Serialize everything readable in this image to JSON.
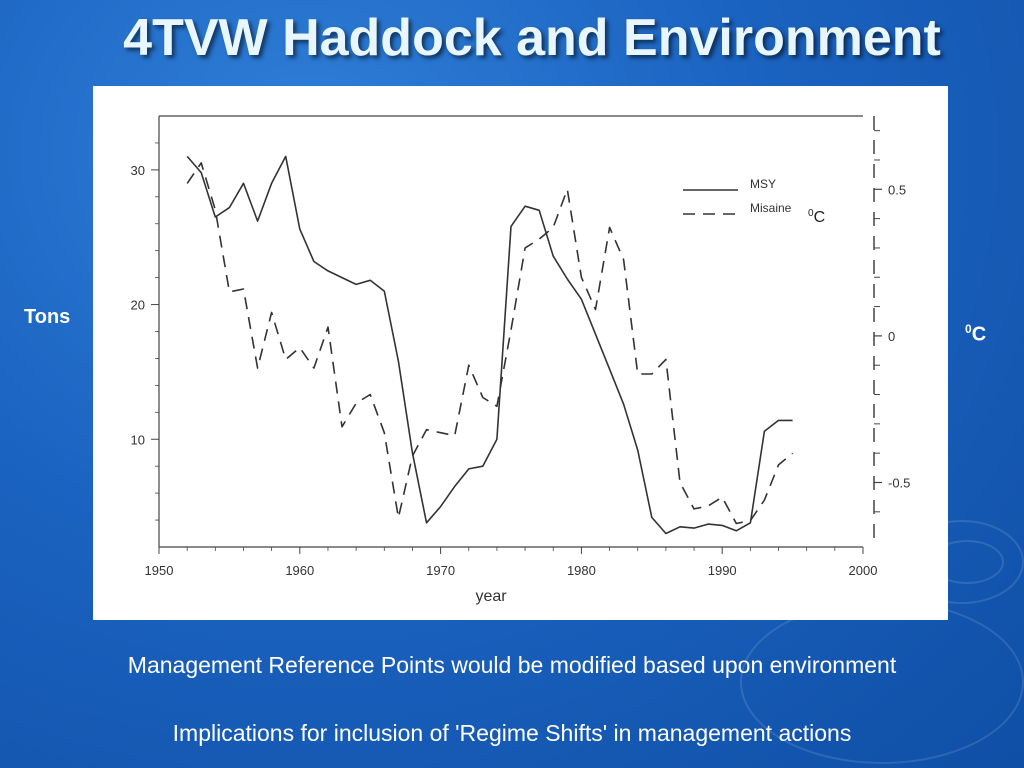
{
  "slide": {
    "title": "4TVW Haddock and Environment",
    "left_axis_title": "Tons",
    "right_axis_title_sup": "0",
    "right_axis_title_text": "C",
    "bullets": [
      "Management Reference Points would be modified based upon environment",
      "Implications for inclusion of 'Regime Shifts' in management actions"
    ]
  },
  "chart_data": {
    "type": "line",
    "xlabel": "year",
    "xlim": [
      1950,
      2000
    ],
    "x_ticks": [
      "1950",
      "1960",
      "1970",
      "1980",
      "1990",
      "2000"
    ],
    "ylim_left": [
      2,
      34
    ],
    "y_ticks_left": [
      "10",
      "20",
      "30"
    ],
    "ylim_right": [
      -0.72,
      0.75
    ],
    "y_ticks_right": [
      "0.5",
      "0",
      "-0.5"
    ],
    "legend_position": "top-right",
    "legend_annotation_sup": "0",
    "legend_annotation_text": "C",
    "series": [
      {
        "name": "MSY",
        "axis": "left",
        "style": "solid",
        "color": "#333333",
        "x": [
          1952,
          1953,
          1954,
          1955,
          1956,
          1957,
          1958,
          1959,
          1960,
          1961,
          1962,
          1963,
          1964,
          1965,
          1966,
          1967,
          1968,
          1969,
          1970,
          1971,
          1972,
          1973,
          1974,
          1975,
          1976,
          1977,
          1978,
          1979,
          1980,
          1981,
          1982,
          1983,
          1984,
          1985,
          1986,
          1987,
          1988,
          1989,
          1990,
          1991,
          1992,
          1993,
          1994,
          1995
        ],
        "y": [
          31,
          29.8,
          26.5,
          27.2,
          29,
          26.2,
          29,
          31,
          25.6,
          23.2,
          22.5,
          22,
          21.5,
          21.8,
          21,
          15.8,
          9,
          3.8,
          5,
          6.5,
          7.8,
          8,
          10,
          25.8,
          27.3,
          27,
          23.6,
          21.9,
          20.4,
          17.8,
          15.2,
          12.6,
          9.2,
          4.2,
          3,
          3.5,
          3.4,
          3.7,
          3.6,
          3.2,
          3.8,
          10.6,
          11.4,
          11.4
        ]
      },
      {
        "name": "Misaine",
        "axis": "right",
        "style": "dashed",
        "color": "#333333",
        "x": [
          1952,
          1953,
          1954,
          1955,
          1956,
          1957,
          1958,
          1959,
          1960,
          1961,
          1962,
          1963,
          1964,
          1965,
          1966,
          1967,
          1968,
          1969,
          1970,
          1971,
          1972,
          1973,
          1974,
          1975,
          1976,
          1977,
          1978,
          1979,
          1980,
          1981,
          1982,
          1983,
          1984,
          1985,
          1986,
          1987,
          1988,
          1989,
          1990,
          1991,
          1992,
          1993,
          1994,
          1995
        ],
        "y": [
          0.52,
          0.59,
          0.43,
          0.15,
          0.16,
          -0.11,
          0.08,
          -0.08,
          -0.04,
          -0.11,
          0.03,
          -0.31,
          -0.23,
          -0.2,
          -0.33,
          -0.62,
          -0.41,
          -0.32,
          -0.33,
          -0.34,
          -0.1,
          -0.21,
          -0.24,
          0.02,
          0.3,
          0.33,
          0.37,
          0.5,
          0.2,
          0.09,
          0.37,
          0.26,
          -0.13,
          -0.13,
          -0.08,
          -0.5,
          -0.59,
          -0.58,
          -0.55,
          -0.64,
          -0.63,
          -0.56,
          -0.44,
          -0.4
        ]
      }
    ]
  }
}
